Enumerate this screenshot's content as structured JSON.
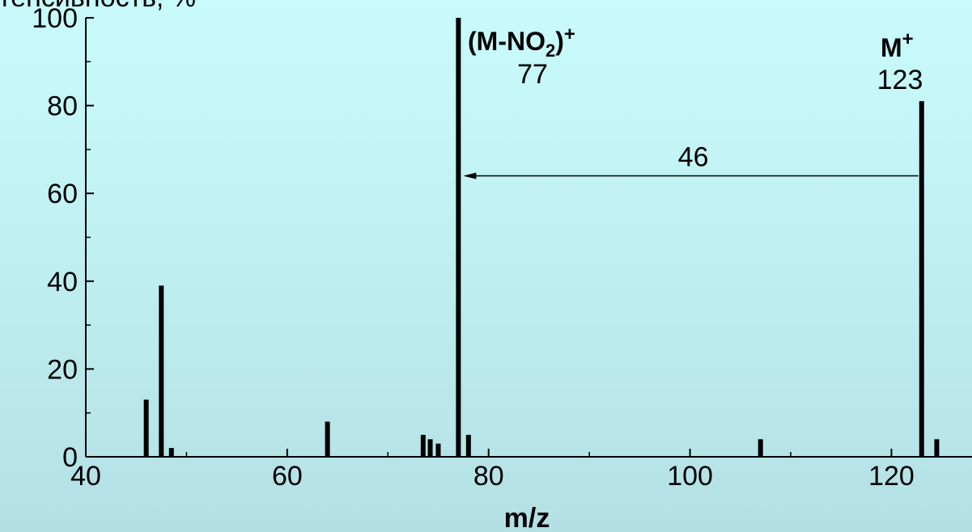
{
  "chart_data": {
    "type": "bar",
    "ylabel": "тенсивность, %",
    "xlabel": "m/z",
    "xlim": [
      40,
      128
    ],
    "ylim": [
      0,
      100
    ],
    "x_ticks": [
      40,
      60,
      80,
      100,
      120
    ],
    "y_ticks": [
      0,
      20,
      40,
      60,
      80,
      100
    ],
    "grid": false,
    "peaks": [
      {
        "x": 46,
        "y": 13
      },
      {
        "x": 47.5,
        "y": 39
      },
      {
        "x": 48.5,
        "y": 2
      },
      {
        "x": 64,
        "y": 8
      },
      {
        "x": 73.5,
        "y": 5
      },
      {
        "x": 74.2,
        "y": 4
      },
      {
        "x": 75,
        "y": 3
      },
      {
        "x": 77,
        "y": 100
      },
      {
        "x": 78,
        "y": 5
      },
      {
        "x": 107,
        "y": 4
      },
      {
        "x": 123,
        "y": 81
      },
      {
        "x": 124.5,
        "y": 4
      }
    ],
    "annotations": {
      "fragment": {
        "ion_main": "(M-NO",
        "ion_sub": "2",
        "ion_close": ")",
        "ion_sup": "+",
        "mz": "77"
      },
      "molecular": {
        "ion_main": "M",
        "ion_sup": "+",
        "mz": "123"
      },
      "loss": {
        "label": "46",
        "from_x": 123,
        "to_x": 77,
        "y": 64
      }
    }
  }
}
